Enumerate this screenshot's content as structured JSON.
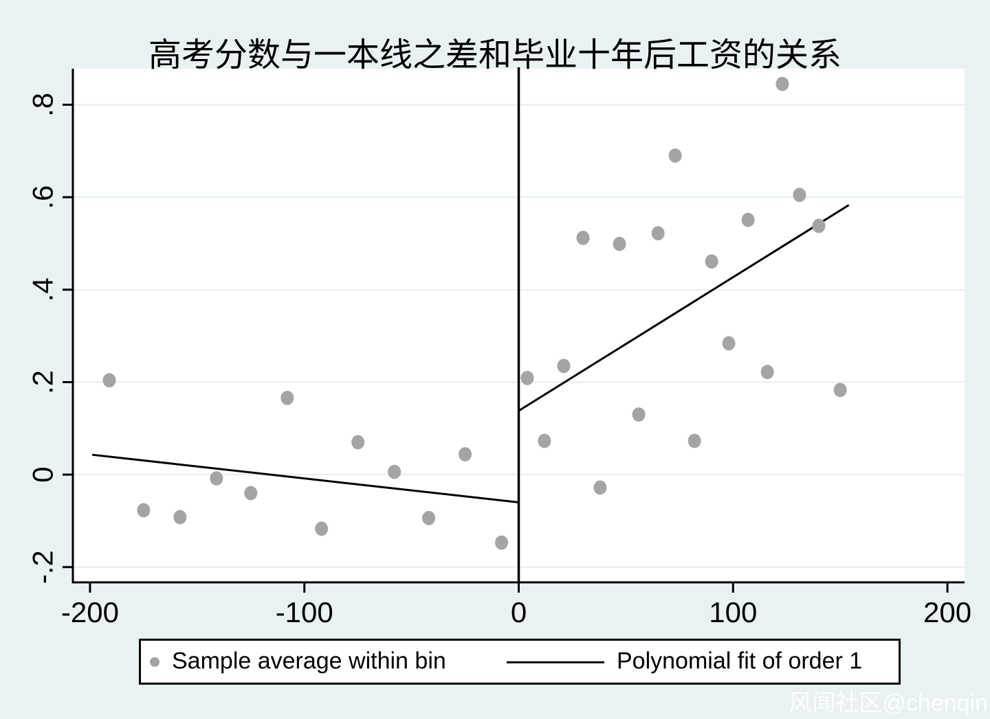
{
  "title": "高考分数与一本线之差和毕业十年后工资的关系",
  "watermark_text": "风闻社区@chenqin",
  "legend": {
    "marker_label": "Sample average within bin",
    "line_label": "Polynomial fit of order 1"
  },
  "colors": {
    "background": "#e9f1f2",
    "plot_background": "#ffffff",
    "gridline": "#e4eef0",
    "axis": "#000000",
    "marker": "#a4a4a4",
    "fit_line": "#000000",
    "cutoff_line": "#000000",
    "text": "#000000",
    "watermark": "rgba(255,255,255,0.92)"
  },
  "chart_data": {
    "type": "scatter",
    "title": "高考分数与一本线之差和毕业十年后工资的关系",
    "xlabel": "",
    "ylabel": "",
    "xlim": [
      -208,
      208
    ],
    "ylim": [
      -0.233,
      0.878
    ],
    "grid": true,
    "legend_position": "bottom",
    "cutoff_x": 0,
    "x_ticks": {
      "values": [
        -200,
        -100,
        0,
        100,
        200
      ],
      "labels": [
        "-200",
        "-100",
        "0",
        "100",
        "200"
      ]
    },
    "y_ticks": {
      "values": [
        -0.2,
        0,
        0.2,
        0.4,
        0.6,
        0.8
      ],
      "labels": [
        "-.2",
        "0",
        ".2",
        ".4",
        ".6",
        ".8"
      ]
    },
    "series": [
      {
        "name": "Sample average within bin",
        "type": "scatter",
        "points": [
          [
            -191,
            0.204
          ],
          [
            -175,
            -0.077
          ],
          [
            -158,
            -0.092
          ],
          [
            -141,
            -0.008
          ],
          [
            -125,
            -0.04
          ],
          [
            -108,
            0.166
          ],
          [
            -92,
            -0.117
          ],
          [
            -75,
            0.07
          ],
          [
            -58,
            0.006
          ],
          [
            -42,
            -0.094
          ],
          [
            -25,
            0.044
          ],
          [
            -8,
            -0.147
          ],
          [
            4,
            0.209
          ],
          [
            12,
            0.073
          ],
          [
            21,
            0.235
          ],
          [
            30,
            0.512
          ],
          [
            38,
            -0.028
          ],
          [
            47,
            0.499
          ],
          [
            56,
            0.13
          ],
          [
            65,
            0.522
          ],
          [
            73,
            0.69
          ],
          [
            82,
            0.073
          ],
          [
            90,
            0.461
          ],
          [
            98,
            0.284
          ],
          [
            107,
            0.551
          ],
          [
            116,
            0.222
          ],
          [
            123,
            0.845
          ],
          [
            131,
            0.605
          ],
          [
            140,
            0.538
          ],
          [
            150,
            0.183
          ]
        ]
      },
      {
        "name": "Polynomial fit of order 1",
        "type": "line",
        "segments": [
          [
            [
              -199,
              0.043
            ],
            [
              0,
              -0.06
            ]
          ],
          [
            [
              0,
              0.138
            ],
            [
              154,
              0.583
            ]
          ]
        ]
      }
    ]
  }
}
